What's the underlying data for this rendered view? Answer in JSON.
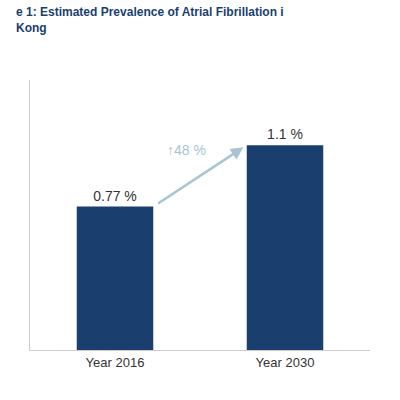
{
  "chart_data": {
    "type": "bar",
    "title": "e 1: Estimated Prevalence of Atrial Fibrillation i",
    "subtitle": "Kong",
    "categories": [
      "Year 2016",
      "Year 2030"
    ],
    "values": [
      0.77,
      1.1
    ],
    "value_labels": [
      "0.77 %",
      "1.1 %"
    ],
    "data_labels": true,
    "color": "#1a3f6f",
    "ylim": [
      0,
      1.45
    ],
    "yticks": [],
    "tick_labels": "x",
    "grid": false,
    "annotations": [
      {
        "text": "↑48 %",
        "color": "#a8c4d4"
      }
    ]
  }
}
